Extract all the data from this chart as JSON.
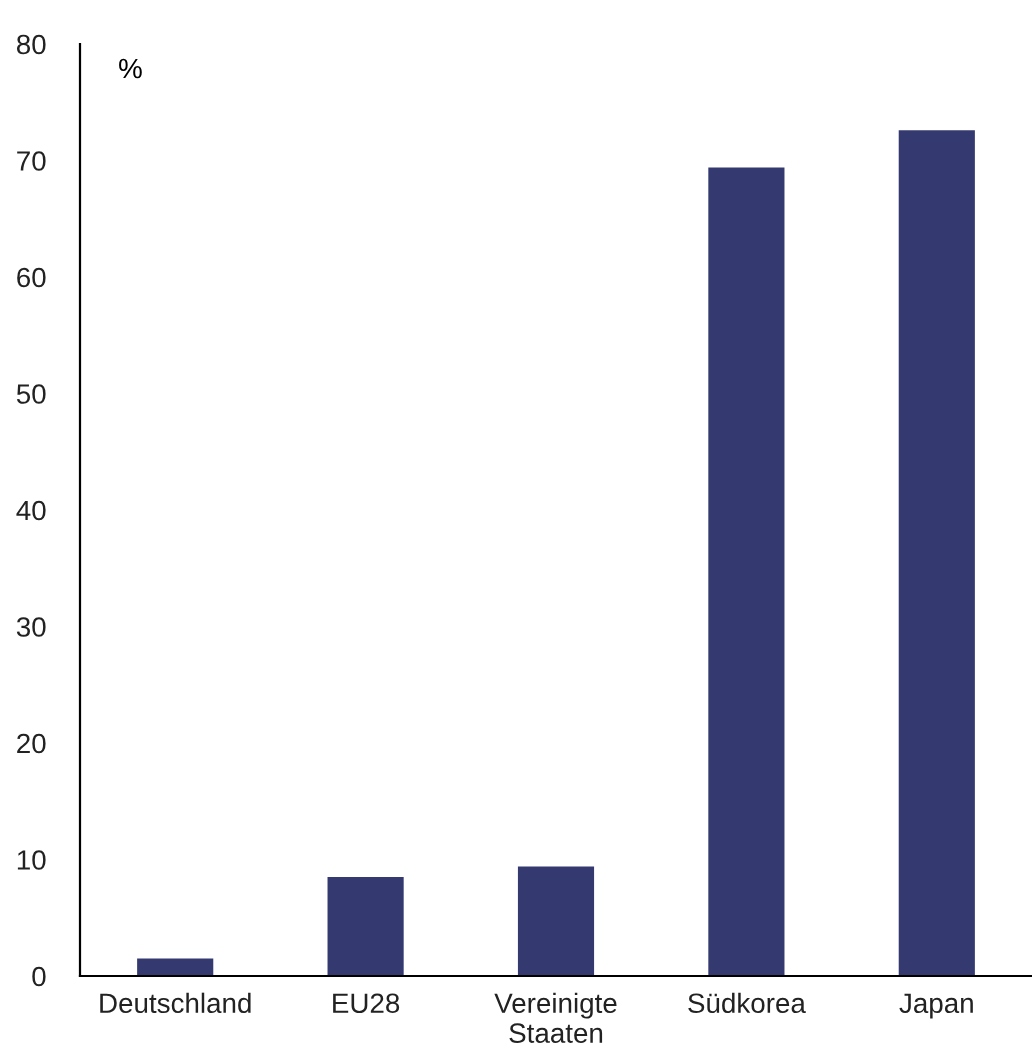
{
  "chart_data": {
    "type": "bar",
    "ylabel": "%",
    "categories": [
      "Deutschland",
      "EU28",
      "Vereinigte\nStaaten",
      "Südkorea",
      "Japan"
    ],
    "values": [
      1.5,
      8.5,
      9.4,
      69.4,
      72.6
    ],
    "color": "#343a70",
    "ylim": [
      0,
      80
    ],
    "yticks": [
      0,
      10,
      20,
      30,
      40,
      50,
      60,
      70,
      80
    ],
    "grid": false,
    "legend": false
  }
}
